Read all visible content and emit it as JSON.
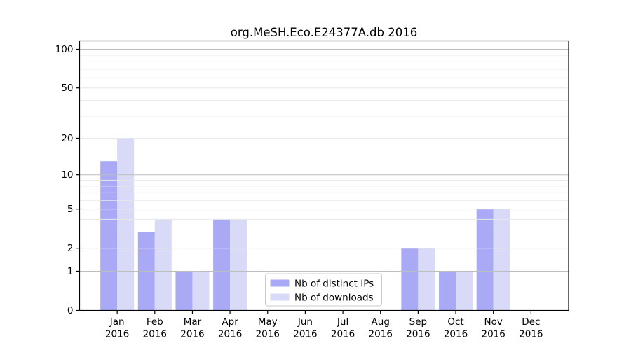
{
  "chart_data": {
    "type": "bar",
    "title": "org.MeSH.Eco.E24377A.db 2016",
    "x_year": "2016",
    "categories": [
      "Jan",
      "Feb",
      "Mar",
      "Apr",
      "May",
      "Jun",
      "Jul",
      "Aug",
      "Sep",
      "Oct",
      "Nov",
      "Dec"
    ],
    "series": [
      {
        "name": "Nb of distinct IPs",
        "color": "#a9a9f6",
        "values": [
          13,
          3,
          1,
          4,
          0,
          0,
          0,
          0,
          2,
          1,
          5,
          0
        ]
      },
      {
        "name": "Nb of downloads",
        "color": "#d9d9f8",
        "values": [
          20,
          4,
          1,
          4,
          0,
          0,
          0,
          0,
          2,
          1,
          5,
          0
        ]
      }
    ],
    "scale": "log1p",
    "ylim": [
      0,
      117
    ],
    "y_ticks": [
      0,
      1,
      2,
      5,
      10,
      20,
      50,
      100
    ],
    "grid": {
      "on": true,
      "major": [
        1,
        10,
        100
      ],
      "minor": [
        2,
        3,
        4,
        5,
        6,
        7,
        8,
        9,
        20,
        30,
        40,
        50,
        60,
        70,
        80,
        90
      ],
      "major_color": "#bdbdbd",
      "minor_color": "#e8e8e8"
    },
    "legend": {
      "position": "bottom-center"
    },
    "axis_color": "#000000"
  }
}
